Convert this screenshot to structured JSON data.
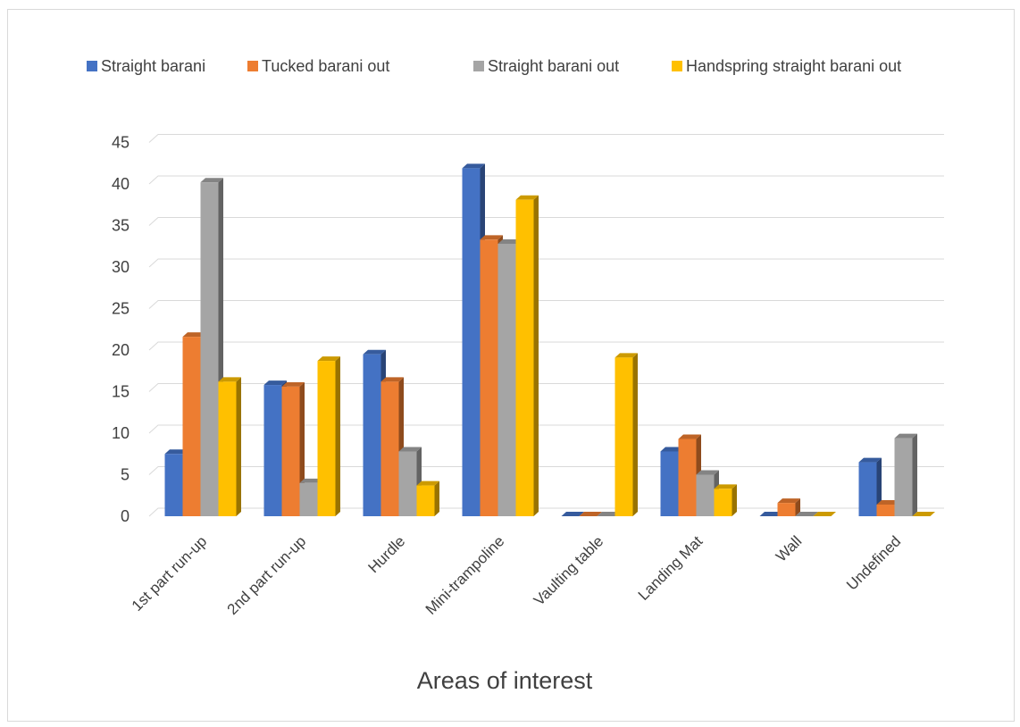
{
  "chart_data": {
    "type": "bar",
    "title": "",
    "xlabel": "Areas of interest",
    "ylabel": "",
    "ylim": [
      0,
      45
    ],
    "yticks": [
      0,
      5,
      10,
      15,
      20,
      25,
      30,
      35,
      40,
      45
    ],
    "grid": true,
    "legend_position": "top",
    "categories": [
      "1st part run-up",
      "2nd part run-up",
      "Hurdle",
      "Mini-trampoline",
      "Vaulting table",
      "Landing Mat",
      "Wall",
      "Undefined"
    ],
    "series": [
      {
        "name": "Straight barani",
        "color": "#4472c4",
        "values": [
          7.5,
          15.8,
          19.5,
          41.9,
          0,
          7.8,
          0,
          6.5
        ]
      },
      {
        "name": "Tucked barani out",
        "color": "#ed7d31",
        "values": [
          21.6,
          15.6,
          16.2,
          33.3,
          0,
          9.3,
          1.6,
          1.4
        ]
      },
      {
        "name": "Straight barani out",
        "color": "#a5a5a5",
        "values": [
          40.2,
          4.0,
          7.8,
          32.8,
          0,
          5.0,
          0,
          9.4
        ]
      },
      {
        "name": "Handspring straight barani out",
        "color": "#ffc000",
        "values": [
          16.2,
          18.7,
          3.7,
          38.1,
          19.1,
          3.3,
          0,
          0
        ]
      }
    ]
  }
}
